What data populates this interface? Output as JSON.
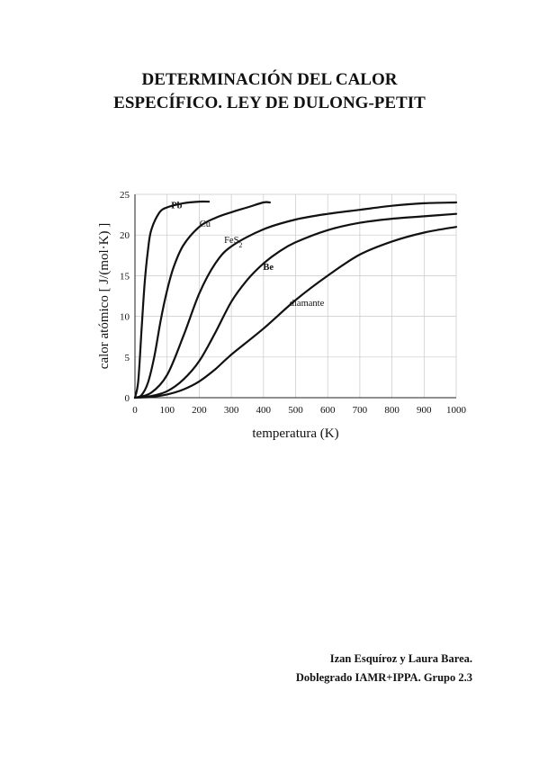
{
  "document": {
    "title_line1": "DETERMINACIÓN DEL CALOR",
    "title_line2": "ESPECÍFICO. LEY DE DULONG-PETIT",
    "authors_line1": "Izan Esquíroz y Laura Barea.",
    "authors_line2": "Doblegrado IAMR+IPPA. Grupo 2.3"
  },
  "chart_data": {
    "type": "line",
    "xlabel": "temperatura (K)",
    "ylabel": "calor atómico [ J/(mol·K) ]",
    "xlim": [
      0,
      1000
    ],
    "ylim": [
      0,
      25
    ],
    "xticks": [
      "0",
      "100",
      "200",
      "300",
      "400",
      "500",
      "600",
      "700",
      "800",
      "900",
      "1000"
    ],
    "yticks": [
      "0",
      "5",
      "10",
      "15",
      "20",
      "25"
    ],
    "grid": true,
    "series": [
      {
        "name": "Pb",
        "points": [
          [
            0,
            0
          ],
          [
            10,
            2
          ],
          [
            20,
            8
          ],
          [
            30,
            14
          ],
          [
            40,
            18
          ],
          [
            50,
            20.5
          ],
          [
            75,
            22.7
          ],
          [
            100,
            23.4
          ],
          [
            150,
            23.9
          ],
          [
            200,
            24.1
          ],
          [
            230,
            24.1
          ]
        ]
      },
      {
        "name": "Cu",
        "points": [
          [
            0,
            0
          ],
          [
            20,
            0.3
          ],
          [
            40,
            1.8
          ],
          [
            60,
            5
          ],
          [
            80,
            9.5
          ],
          [
            100,
            13.2
          ],
          [
            120,
            16
          ],
          [
            150,
            18.7
          ],
          [
            200,
            21
          ],
          [
            250,
            22.1
          ],
          [
            300,
            22.8
          ],
          [
            350,
            23.4
          ],
          [
            400,
            24
          ],
          [
            420,
            24
          ]
        ]
      },
      {
        "name": "FeS2",
        "points": [
          [
            0,
            0
          ],
          [
            50,
            0.6
          ],
          [
            100,
            2.8
          ],
          [
            150,
            7.5
          ],
          [
            200,
            12.8
          ],
          [
            250,
            16.5
          ],
          [
            300,
            18.6
          ],
          [
            400,
            20.7
          ],
          [
            500,
            21.9
          ],
          [
            600,
            22.6
          ],
          [
            700,
            23.1
          ],
          [
            800,
            23.6
          ],
          [
            900,
            23.9
          ],
          [
            1000,
            24
          ]
        ]
      },
      {
        "name": "Be",
        "points": [
          [
            0,
            0
          ],
          [
            50,
            0.2
          ],
          [
            100,
            0.8
          ],
          [
            150,
            2.2
          ],
          [
            200,
            4.5
          ],
          [
            250,
            8
          ],
          [
            300,
            11.8
          ],
          [
            350,
            14.5
          ],
          [
            400,
            16.5
          ],
          [
            450,
            18
          ],
          [
            500,
            19.1
          ],
          [
            600,
            20.6
          ],
          [
            700,
            21.5
          ],
          [
            800,
            22
          ],
          [
            900,
            22.3
          ],
          [
            1000,
            22.6
          ]
        ]
      },
      {
        "name": "diamante",
        "points": [
          [
            0,
            0
          ],
          [
            50,
            0.1
          ],
          [
            100,
            0.4
          ],
          [
            150,
            1
          ],
          [
            200,
            2
          ],
          [
            250,
            3.5
          ],
          [
            300,
            5.3
          ],
          [
            400,
            8.5
          ],
          [
            500,
            12
          ],
          [
            600,
            15
          ],
          [
            700,
            17.6
          ],
          [
            800,
            19.2
          ],
          [
            900,
            20.3
          ],
          [
            1000,
            21
          ]
        ]
      }
    ],
    "labels": [
      {
        "text": "Pb",
        "x": 130,
        "y": 23.3
      },
      {
        "text": "Cu",
        "x": 218,
        "y": 21
      },
      {
        "text": "FeS",
        "sub": "2",
        "x": 306,
        "y": 19
      },
      {
        "text": "Be",
        "x": 415,
        "y": 15.7
      },
      {
        "text": "diamante",
        "x": 535,
        "y": 11.3
      }
    ]
  }
}
